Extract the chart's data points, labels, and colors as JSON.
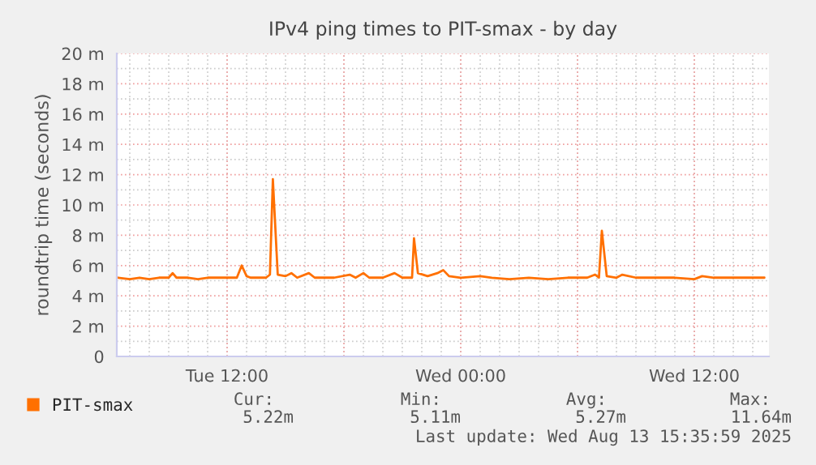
{
  "chart_data": {
    "type": "line",
    "title": "IPv4 ping times to PIT-smax - by day",
    "ylabel": "roundtrip time (seconds)",
    "x": [
      "2025-08-12T06:24",
      "2025-08-12T07:00",
      "2025-08-12T07:30",
      "2025-08-12T08:00",
      "2025-08-12T08:30",
      "2025-08-12T09:00",
      "2025-08-12T09:12",
      "2025-08-12T09:24",
      "2025-08-12T10:00",
      "2025-08-12T10:30",
      "2025-08-12T11:00",
      "2025-08-12T12:00",
      "2025-08-12T12:30",
      "2025-08-12T12:45",
      "2025-08-12T13:00",
      "2025-08-12T13:12",
      "2025-08-12T14:00",
      "2025-08-12T14:12",
      "2025-08-12T14:21",
      "2025-08-12T14:36",
      "2025-08-12T15:00",
      "2025-08-12T15:18",
      "2025-08-12T15:36",
      "2025-08-12T16:12",
      "2025-08-12T16:30",
      "2025-08-12T17:30",
      "2025-08-12T18:18",
      "2025-08-12T18:36",
      "2025-08-12T19:00",
      "2025-08-12T19:18",
      "2025-08-12T20:00",
      "2025-08-12T20:36",
      "2025-08-12T21:00",
      "2025-08-12T21:30",
      "2025-08-12T21:36",
      "2025-08-12T21:48",
      "2025-08-12T22:18",
      "2025-08-12T22:48",
      "2025-08-12T23:06",
      "2025-08-12T23:24",
      "2025-08-13T00:00",
      "2025-08-13T01:00",
      "2025-08-13T01:36",
      "2025-08-13T02:30",
      "2025-08-13T03:30",
      "2025-08-13T04:30",
      "2025-08-13T05:30",
      "2025-08-13T06:30",
      "2025-08-13T06:54",
      "2025-08-13T07:06",
      "2025-08-13T07:15",
      "2025-08-13T07:30",
      "2025-08-13T08:00",
      "2025-08-13T08:18",
      "2025-08-13T09:00",
      "2025-08-13T10:00",
      "2025-08-13T11:00",
      "2025-08-13T12:00",
      "2025-08-13T12:24",
      "2025-08-13T13:00",
      "2025-08-13T14:00",
      "2025-08-13T15:36"
    ],
    "series": [
      {
        "name": "PIT-smax",
        "color": "#ff7000",
        "values": [
          5.2,
          5.1,
          5.2,
          5.1,
          5.2,
          5.2,
          5.5,
          5.2,
          5.2,
          5.1,
          5.2,
          5.2,
          5.2,
          6.0,
          5.3,
          5.2,
          5.2,
          5.4,
          11.7,
          5.4,
          5.3,
          5.5,
          5.2,
          5.5,
          5.2,
          5.2,
          5.4,
          5.2,
          5.5,
          5.2,
          5.2,
          5.5,
          5.2,
          5.2,
          7.8,
          5.5,
          5.3,
          5.5,
          5.7,
          5.3,
          5.2,
          5.3,
          5.2,
          5.1,
          5.2,
          5.1,
          5.2,
          5.2,
          5.4,
          5.2,
          8.3,
          5.3,
          5.2,
          5.4,
          5.2,
          5.2,
          5.2,
          5.1,
          5.3,
          5.2,
          5.2,
          5.2
        ]
      }
    ],
    "xlim": [
      "2025-08-12T06:20",
      "2025-08-13T15:50"
    ],
    "xticks": [
      {
        "value": "2025-08-12T12:00",
        "label": "Tue 12:00"
      },
      {
        "value": "2025-08-12T18:00",
        "label": null
      },
      {
        "value": "2025-08-13T00:00",
        "label": "Wed 00:00"
      },
      {
        "value": "2025-08-13T06:00",
        "label": null
      },
      {
        "value": "2025-08-13T12:00",
        "label": "Wed 12:00"
      }
    ],
    "ylim": [
      0,
      20
    ],
    "yticks": [
      {
        "value": 0,
        "label": "0"
      },
      {
        "value": 2,
        "label": "2 m"
      },
      {
        "value": 4,
        "label": "4 m"
      },
      {
        "value": 6,
        "label": "6 m"
      },
      {
        "value": 8,
        "label": "8 m"
      },
      {
        "value": 10,
        "label": "10 m"
      },
      {
        "value": 12,
        "label": "12 m"
      },
      {
        "value": 14,
        "label": "14 m"
      },
      {
        "value": 16,
        "label": "16 m"
      },
      {
        "value": 18,
        "label": "18 m"
      },
      {
        "value": 20,
        "label": "20 m"
      }
    ],
    "grid": true,
    "legend": "bottom left",
    "marker": "none",
    "line_style": "solid",
    "annotations": [
      "Cur:",
      "Min:",
      "Avg:",
      "Max:",
      "5.22m",
      "5.11m",
      "5.27m",
      "11.64m",
      "Last update: Wed Aug 13 15:35:59 2025"
    ]
  }
}
